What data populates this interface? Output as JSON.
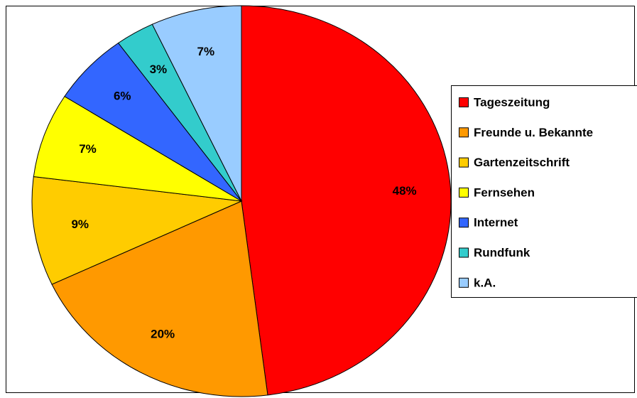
{
  "chart_data": {
    "type": "pie",
    "categories": [
      "Tageszeitung",
      "Freunde u. Bekannte",
      "Gartenzeitschrift",
      "Fernsehen",
      "Internet",
      "Rundfunk",
      "k.A."
    ],
    "values": [
      48,
      20,
      9,
      7,
      6,
      3,
      7
    ],
    "value_labels": [
      "48%",
      "20%",
      "9%",
      "7%",
      "6%",
      "3%",
      "7%"
    ],
    "colors": [
      "#ff0000",
      "#ff9900",
      "#ffcc00",
      "#ffff00",
      "#3366ff",
      "#33cccc",
      "#99ccff"
    ],
    "legend": "right"
  }
}
